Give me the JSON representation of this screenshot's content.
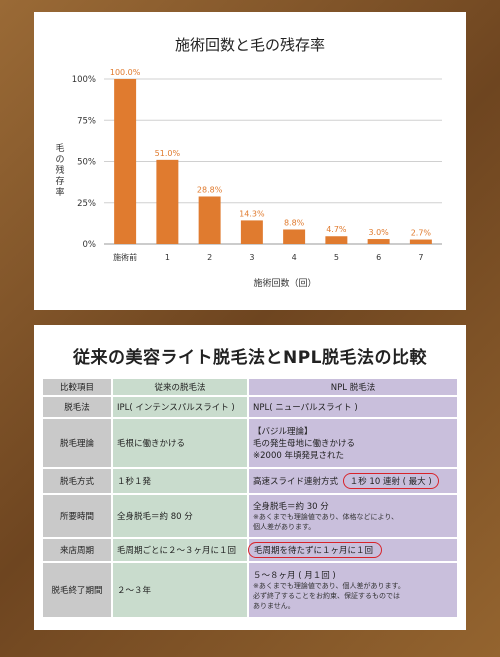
{
  "chart_data": {
    "type": "bar",
    "title": "施術回数と毛の残存率",
    "xlabel": "施術回数（回）",
    "ylabel": "毛の残存率",
    "categories": [
      "施術前",
      "1",
      "2",
      "3",
      "4",
      "5",
      "6",
      "7"
    ],
    "values": [
      100.0,
      51.0,
      28.8,
      14.3,
      8.8,
      4.7,
      3.0,
      2.7
    ],
    "value_labels": [
      "100.0%",
      "51.0%",
      "28.8%",
      "14.3%",
      "8.8%",
      "4.7%",
      "3.0%",
      "2.7%"
    ],
    "yticks": [
      0,
      25,
      50,
      75,
      100
    ],
    "ytick_labels": [
      "0%",
      "25%",
      "50%",
      "75%",
      "100%"
    ],
    "ylim": [
      0,
      100
    ],
    "grid": true,
    "bar_color": "#e07b2f"
  },
  "comparison": {
    "title": "従来の美容ライト脱毛法とNPL脱毛法の比較",
    "headers": {
      "item": "比較項目",
      "ipl": "従来の脱毛法",
      "npl": "NPL 脱毛法"
    },
    "rows": {
      "method": {
        "label": "脱毛法",
        "ipl": "IPL( インテンスパルスライト )",
        "npl": "NPL( ニューパルスライト )"
      },
      "theory": {
        "label": "脱毛理論",
        "ipl": "毛根に働きかける",
        "npl_1": "【バジル理論】",
        "npl_2": "毛の発生母地に働きかける",
        "npl_3": "※2000 年頃発見された"
      },
      "firing": {
        "label": "脱毛方式",
        "ipl": "１秒１発",
        "npl_pre": "高速スライド連射方式",
        "npl_highlight": "１秒 10 連射 ( 最大 )"
      },
      "time": {
        "label": "所要時間",
        "ipl": "全身脱毛＝約 80 分",
        "npl_main": "全身脱毛＝約 30 分",
        "npl_note_1": "※あくまでも理論値であり、体格などにより、",
        "npl_note_2": "個人差があります。"
      },
      "visit": {
        "label": "来店周期",
        "ipl": "毛周期ごとに２～３ヶ月に１回",
        "npl_highlight": "毛周期を待たずに１ヶ月に１回"
      },
      "period": {
        "label": "脱毛終了期間",
        "ipl": "２～３年",
        "npl_main": "５～８ヶ月 ( 月１回 )",
        "npl_note_1": "※あくまでも理論値であり、個人差があります。",
        "npl_note_2": "必ず終了することをお約束、保証するものでは",
        "npl_note_3": "ありません。"
      }
    },
    "highlight_color": "#d8232a",
    "ipl_color": "#c9dccd",
    "npl_color": "#c9bfdc"
  }
}
